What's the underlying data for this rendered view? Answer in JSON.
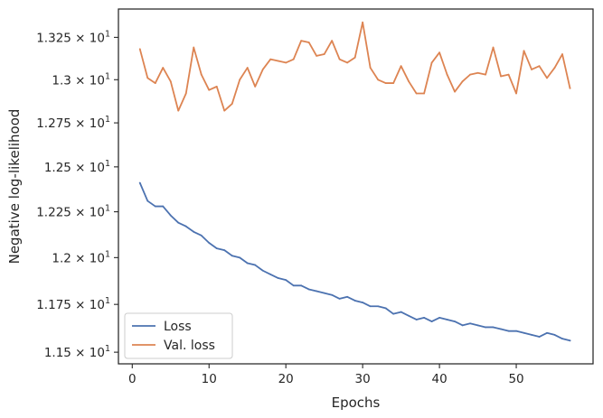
{
  "chart_data": {
    "type": "line",
    "xlabel": "Epochs",
    "ylabel": "Negative log-likelihood",
    "xlim": [
      -1.8,
      60.0
    ],
    "ylim": [
      11.44,
      13.42
    ],
    "yscale": "log",
    "x_ticks": [
      0,
      10,
      20,
      30,
      40,
      50
    ],
    "y_ticks": [
      {
        "value": 11.5,
        "mantissa": "1.15",
        "base": "10",
        "exp": "1"
      },
      {
        "value": 11.75,
        "mantissa": "1.175",
        "base": "10",
        "exp": "1"
      },
      {
        "value": 12.0,
        "mantissa": "1.2",
        "base": "10",
        "exp": "1"
      },
      {
        "value": 12.25,
        "mantissa": "1.225",
        "base": "10",
        "exp": "1"
      },
      {
        "value": 12.5,
        "mantissa": "1.25",
        "base": "10",
        "exp": "1"
      },
      {
        "value": 12.75,
        "mantissa": "1.275",
        "base": "10",
        "exp": "1"
      },
      {
        "value": 13.0,
        "mantissa": "1.3",
        "base": "10",
        "exp": "1"
      },
      {
        "value": 13.25,
        "mantissa": "1.325",
        "base": "10",
        "exp": "1"
      }
    ],
    "grid": false,
    "legend_position": "lower-left",
    "x": [
      1,
      2,
      3,
      4,
      5,
      6,
      7,
      8,
      9,
      10,
      11,
      12,
      13,
      14,
      15,
      16,
      17,
      18,
      19,
      20,
      21,
      22,
      23,
      24,
      25,
      26,
      27,
      28,
      29,
      30,
      31,
      32,
      33,
      34,
      35,
      36,
      37,
      38,
      39,
      40,
      41,
      42,
      43,
      44,
      45,
      46,
      47,
      48,
      49,
      50,
      51,
      52,
      53,
      54,
      55,
      56,
      57
    ],
    "series": [
      {
        "name": "Loss",
        "color": "#4c72b0",
        "values": [
          12.41,
          12.31,
          12.28,
          12.28,
          12.23,
          12.19,
          12.17,
          12.14,
          12.12,
          12.08,
          12.05,
          12.04,
          12.01,
          12.0,
          11.97,
          11.96,
          11.93,
          11.91,
          11.89,
          11.88,
          11.85,
          11.85,
          11.83,
          11.82,
          11.81,
          11.8,
          11.78,
          11.79,
          11.77,
          11.76,
          11.74,
          11.74,
          11.73,
          11.7,
          11.71,
          11.69,
          11.67,
          11.68,
          11.66,
          11.68,
          11.67,
          11.66,
          11.64,
          11.65,
          11.64,
          11.63,
          11.63,
          11.62,
          11.61,
          11.61,
          11.6,
          11.59,
          11.58,
          11.6,
          11.59,
          11.57,
          11.56
        ]
      },
      {
        "name": "Val. loss",
        "color": "#dd8452",
        "values": [
          13.18,
          13.01,
          12.98,
          13.07,
          12.99,
          12.82,
          12.92,
          13.19,
          13.03,
          12.94,
          12.96,
          12.82,
          12.86,
          13.0,
          13.07,
          12.96,
          13.06,
          13.12,
          13.11,
          13.1,
          13.12,
          13.23,
          13.22,
          13.14,
          13.15,
          13.23,
          13.12,
          13.1,
          13.13,
          13.34,
          13.07,
          13.0,
          12.98,
          12.98,
          13.08,
          12.99,
          12.92,
          12.92,
          13.1,
          13.16,
          13.03,
          12.93,
          12.99,
          13.03,
          13.04,
          13.03,
          13.19,
          13.02,
          13.03,
          12.92,
          13.17,
          13.06,
          13.08,
          13.01,
          13.07,
          13.15,
          12.95
        ]
      }
    ]
  }
}
